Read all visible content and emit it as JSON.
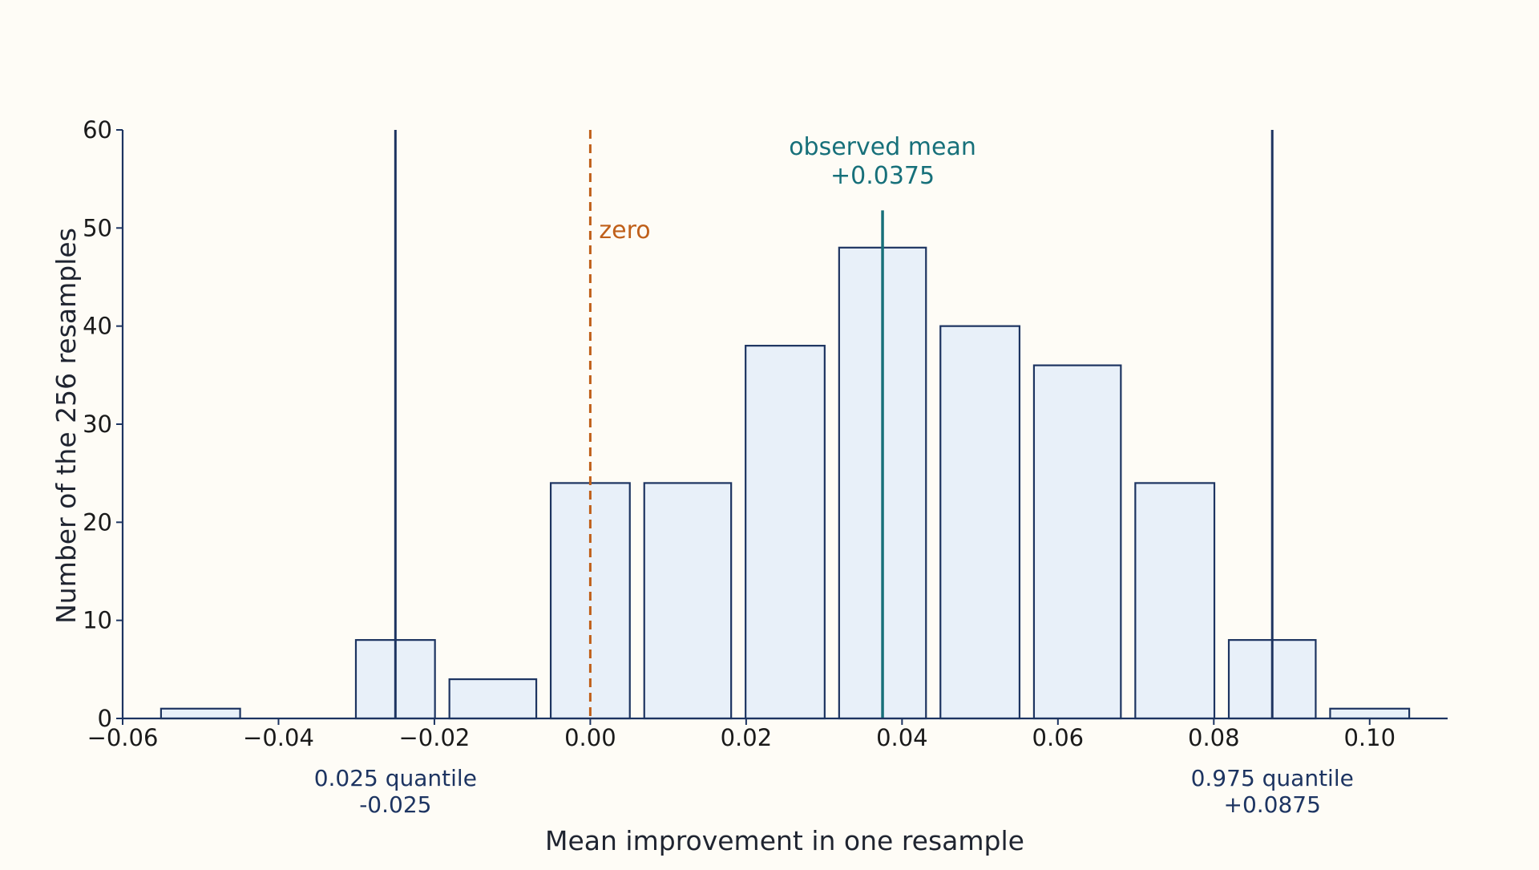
{
  "chart_data": {
    "type": "bar",
    "bins": [
      {
        "start": -0.056,
        "end": -0.044,
        "count": 1
      },
      {
        "start": -0.044,
        "end": -0.031,
        "count": 0
      },
      {
        "start": -0.031,
        "end": -0.019,
        "count": 8
      },
      {
        "start": -0.019,
        "end": -0.006,
        "count": 4
      },
      {
        "start": -0.006,
        "end": 0.006,
        "count": 24
      },
      {
        "start": 0.006,
        "end": 0.019,
        "count": 24
      },
      {
        "start": 0.019,
        "end": 0.031,
        "count": 38
      },
      {
        "start": 0.031,
        "end": 0.044,
        "count": 48
      },
      {
        "start": 0.044,
        "end": 0.056,
        "count": 40
      },
      {
        "start": 0.056,
        "end": 0.069,
        "count": 36
      },
      {
        "start": 0.069,
        "end": 0.081,
        "count": 24
      },
      {
        "start": 0.081,
        "end": 0.094,
        "count": 8
      },
      {
        "start": 0.094,
        "end": 0.106,
        "count": 1
      }
    ],
    "xlabel": "Mean improvement in one resample",
    "ylabel": "Number of the 256 resamples",
    "xlim": [
      -0.06,
      0.11
    ],
    "ylim": [
      0,
      60
    ],
    "xticks": [
      -0.06,
      -0.04,
      -0.02,
      0.0,
      0.02,
      0.04,
      0.06,
      0.08,
      0.1
    ],
    "xtick_labels": [
      "−0.06",
      "−0.04",
      "−0.02",
      "0.00",
      "0.02",
      "0.04",
      "0.06",
      "0.08",
      "0.10"
    ],
    "yticks": [
      0,
      10,
      20,
      30,
      40,
      50,
      60
    ],
    "ytick_labels": [
      "0",
      "10",
      "20",
      "30",
      "40",
      "50",
      "60"
    ],
    "grid": false,
    "reference_lines": [
      {
        "id": "lower-quantile",
        "x": -0.025,
        "color": "#1d3461",
        "style": "solid",
        "y_top": 60,
        "label": [
          "0.025 quantile",
          "-0.025"
        ],
        "label_position": "below-axis"
      },
      {
        "id": "zero",
        "x": 0.0,
        "color": "#c0601a",
        "style": "dashed",
        "y_top": 60,
        "label": [
          "zero"
        ],
        "label_position": "right"
      },
      {
        "id": "observed-mean",
        "x": 0.0375,
        "color": "#17707a",
        "style": "solid",
        "y_top": 51.8,
        "label": [
          "observed mean",
          "+0.0375"
        ],
        "label_position": "above"
      },
      {
        "id": "upper-quantile",
        "x": 0.0875,
        "color": "#1d3461",
        "style": "solid",
        "y_top": 60,
        "label": [
          "0.975 quantile",
          "+0.0875"
        ],
        "label_position": "below-axis"
      }
    ],
    "colors": {
      "bar_fill": "#e8f0f9",
      "bar_stroke": "#1d3461",
      "axis": "#1d3461",
      "background": "#fefcf6"
    }
  }
}
